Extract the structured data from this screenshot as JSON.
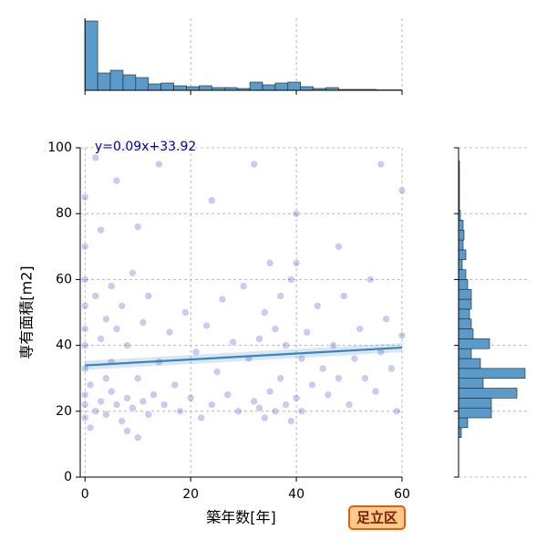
{
  "chart_data": [
    {
      "type": "scatter",
      "xlabel": "築年数[年]",
      "ylabel": "専有面積[m2]",
      "x": [
        0,
        0,
        0,
        0,
        0,
        0,
        0,
        0,
        0,
        0,
        1,
        1,
        2,
        2,
        3,
        3,
        3,
        4,
        4,
        5,
        5,
        5,
        6,
        6,
        7,
        7,
        8,
        8,
        9,
        9,
        10,
        10,
        11,
        11,
        12,
        12,
        13,
        14,
        15,
        16,
        17,
        18,
        19,
        20,
        21,
        22,
        23,
        24,
        25,
        26,
        27,
        28,
        29,
        30,
        31,
        32,
        33,
        33,
        34,
        34,
        35,
        35,
        36,
        36,
        37,
        37,
        38,
        38,
        39,
        39,
        40,
        40,
        41,
        41,
        42,
        43,
        44,
        45,
        46,
        47,
        48,
        49,
        50,
        51,
        52,
        53,
        54,
        55,
        56,
        57,
        58,
        59,
        60,
        60,
        2,
        6,
        10,
        14,
        24,
        32,
        40,
        48,
        56,
        4,
        8
      ],
      "y": [
        18,
        25,
        33,
        45,
        52,
        60,
        70,
        85,
        22,
        40,
        15,
        28,
        20,
        55,
        23,
        42,
        75,
        19,
        48,
        26,
        35,
        58,
        22,
        45,
        17,
        52,
        24,
        40,
        21,
        62,
        12,
        30,
        23,
        47,
        19,
        55,
        25,
        35,
        22,
        44,
        28,
        20,
        50,
        24,
        38,
        18,
        46,
        22,
        32,
        54,
        25,
        41,
        20,
        58,
        36,
        23,
        21,
        42,
        18,
        50,
        26,
        65,
        20,
        45,
        30,
        55,
        22,
        40,
        17,
        60,
        24,
        80,
        36,
        20,
        44,
        28,
        52,
        33,
        25,
        40,
        30,
        55,
        22,
        36,
        45,
        30,
        60,
        26,
        38,
        48,
        33,
        20,
        43,
        87,
        97,
        90,
        76,
        95,
        84,
        95,
        65,
        70,
        95,
        30,
        14
      ],
      "color": "#1010b0",
      "xlim": [
        -0.9,
        60
      ],
      "ylim": [
        0,
        100
      ],
      "xticks": [
        0,
        20,
        40,
        60
      ],
      "yticks": [
        0,
        20,
        40,
        60,
        80,
        100
      ],
      "grid": true,
      "regression": {
        "x": [
          0,
          60
        ],
        "y": [
          33.92,
          39.32
        ],
        "color": "#3a85c0"
      },
      "annotation": "y=0.09x+33.92",
      "annotation_color": "#0000aa",
      "badge": "足立区"
    },
    {
      "type": "histogram",
      "orientation": "vertical",
      "bins": [
        0,
        2.4,
        4.8,
        7.2,
        9.6,
        12,
        14.4,
        16.8,
        19.2,
        21.6,
        24,
        26.4,
        28.8,
        31.2,
        33.6,
        36,
        38.4,
        40.8,
        43.2,
        45.6,
        48,
        50.4,
        52.8,
        55.2,
        57.6,
        60
      ],
      "counts": [
        760,
        190,
        220,
        170,
        140,
        70,
        80,
        50,
        40,
        50,
        30,
        30,
        20,
        90,
        60,
        80,
        90,
        40,
        20,
        30,
        10,
        10,
        10,
        5,
        5
      ],
      "color": "#5a9bc9",
      "xlim": [
        -0.9,
        60
      ],
      "ylim": [
        0,
        790
      ],
      "xticks": [
        0,
        20,
        40,
        60
      ],
      "grid": true
    },
    {
      "type": "histogram",
      "orientation": "horizontal",
      "bins": [
        12,
        15,
        18,
        21,
        24,
        27,
        30,
        33,
        36,
        39,
        42,
        45,
        48,
        51,
        54,
        57,
        60,
        63,
        66,
        69,
        72,
        75,
        78,
        81,
        84,
        87,
        90,
        93,
        96
      ],
      "counts": [
        30,
        100,
        360,
        360,
        640,
        270,
        730,
        240,
        140,
        340,
        160,
        140,
        120,
        140,
        140,
        100,
        80,
        40,
        80,
        50,
        60,
        50,
        20,
        10,
        10,
        10,
        10,
        10
      ],
      "color": "#5a9bc9",
      "xlim": [
        0,
        760
      ],
      "ylim": [
        0,
        100
      ],
      "yticks": [
        0,
        20,
        40,
        60,
        80,
        100
      ],
      "grid": true
    }
  ]
}
